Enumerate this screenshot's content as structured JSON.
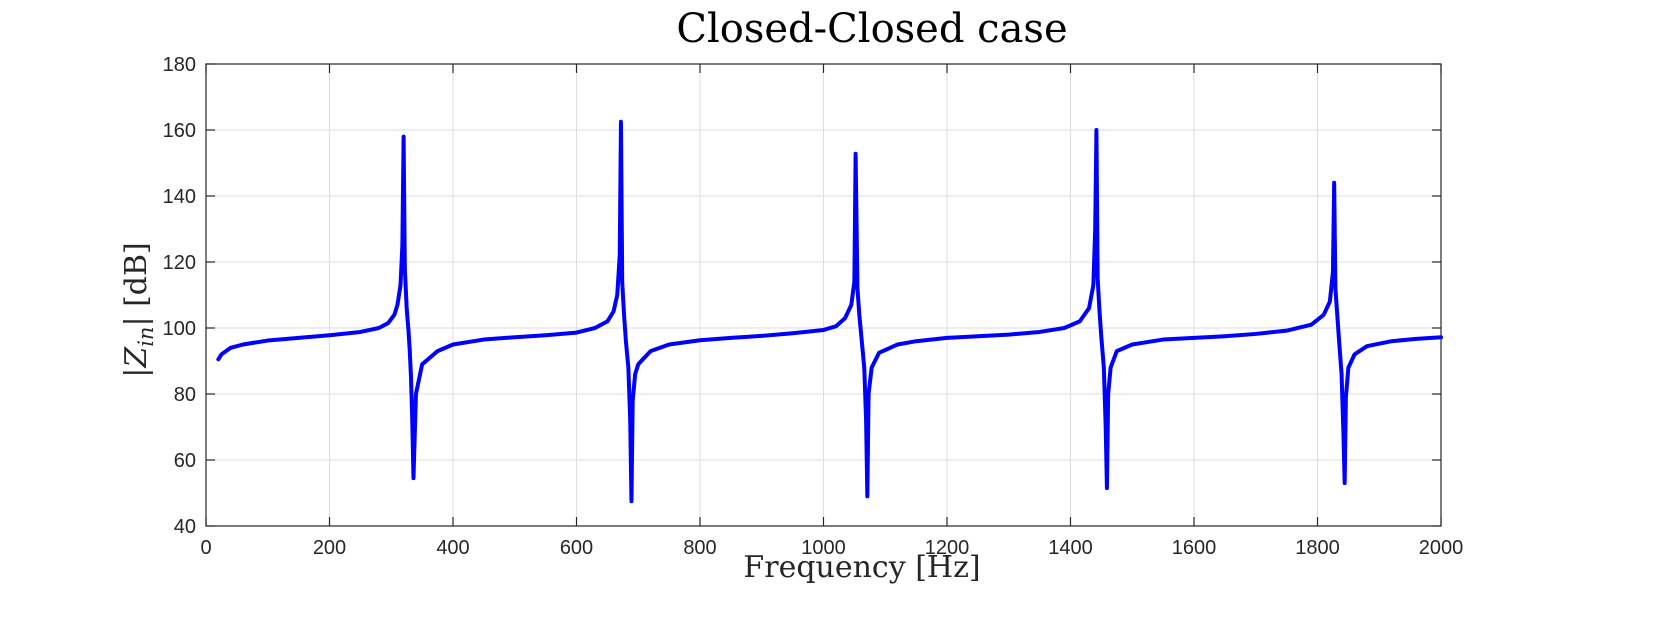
{
  "chart_data": {
    "type": "line",
    "title": "Closed-Closed case",
    "xlabel": "Frequency [Hz]",
    "ylabel": "|Z_in| [dB]",
    "ylabel_parts": {
      "left": "|Z",
      "sub": "in",
      "right": "| [dB]"
    },
    "xlim": [
      0,
      2000
    ],
    "ylim": [
      40,
      180
    ],
    "xticks": [
      0,
      200,
      400,
      600,
      800,
      1000,
      1200,
      1400,
      1600,
      1800,
      2000
    ],
    "yticks": [
      40,
      60,
      80,
      100,
      120,
      140,
      160,
      180
    ],
    "xtick_labels": [
      "0",
      "200",
      "400",
      "600",
      "800",
      "1000",
      "1200",
      "1400",
      "1600",
      "1800",
      "2000"
    ],
    "ytick_labels": [
      "40",
      "60",
      "80",
      "100",
      "120",
      "140",
      "160",
      "180"
    ],
    "grid": true,
    "series": [
      {
        "color": "#0000ff",
        "x": [
          20,
          25,
          40,
          60,
          100,
          150,
          200,
          250,
          280,
          295,
          305,
          310,
          315,
          318,
          320,
          322,
          325,
          328,
          330,
          332,
          334,
          336,
          340,
          350,
          375,
          400,
          450,
          500,
          550,
          600,
          630,
          650,
          660,
          666,
          670,
          672,
          674,
          677,
          680,
          684,
          687,
          689,
          691,
          695,
          700,
          720,
          750,
          800,
          850,
          900,
          950,
          1000,
          1020,
          1035,
          1045,
          1050,
          1052,
          1055,
          1058,
          1062,
          1066,
          1069,
          1071,
          1073,
          1078,
          1090,
          1120,
          1150,
          1200,
          1250,
          1300,
          1350,
          1390,
          1415,
          1430,
          1437,
          1440,
          1442,
          1444,
          1447,
          1450,
          1454,
          1457,
          1459,
          1461,
          1465,
          1475,
          1500,
          1550,
          1600,
          1650,
          1700,
          1750,
          1790,
          1810,
          1820,
          1825,
          1827,
          1829,
          1832,
          1835,
          1839,
          1842,
          1844,
          1846,
          1850,
          1860,
          1880,
          1920,
          1960,
          2000
        ],
        "y": [
          90.5,
          92,
          94,
          95,
          96.2,
          97,
          97.8,
          98.8,
          100,
          101.5,
          104,
          107,
          113,
          125,
          158,
          118,
          106,
          99,
          93,
          85,
          72,
          54.5,
          80,
          89,
          93,
          95,
          96.5,
          97.2,
          97.8,
          98.6,
          100,
          102,
          105,
          110,
          122,
          162.5,
          114,
          104,
          96,
          88,
          72,
          47.5,
          78,
          86,
          89,
          93,
          95,
          96.3,
          97,
          97.6,
          98.4,
          99.4,
          100.5,
          103,
          107,
          114,
          152.8,
          112,
          104,
          96,
          88,
          72,
          49,
          80,
          88,
          92.5,
          95,
          96,
          97,
          97.5,
          98,
          98.8,
          100,
          102,
          106,
          113,
          130,
          160,
          115,
          105,
          97,
          88,
          70,
          51.5,
          80,
          88,
          93,
          95,
          96.5,
          97,
          97.5,
          98.2,
          99.2,
          101,
          104,
          108,
          117,
          144,
          112,
          104,
          96,
          86,
          68,
          53,
          79,
          88,
          92,
          94.5,
          96,
          96.7,
          97.2
        ]
      }
    ]
  }
}
